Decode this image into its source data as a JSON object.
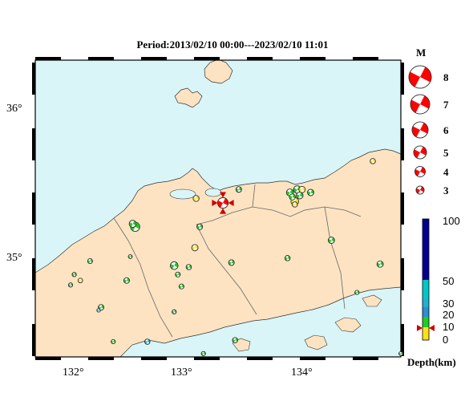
{
  "title": "Period:2013/02/10 00:00---2023/02/10 11:01",
  "axes": {
    "x_ticks": [
      "132°",
      "133°",
      "134°"
    ],
    "y_ticks": [
      "36°",
      "35°"
    ]
  },
  "magnitude_legend": {
    "title": "M",
    "items": [
      "8",
      "7",
      "6",
      "5",
      "4",
      "3"
    ]
  },
  "depth_legend": {
    "label": "Depth(km)",
    "ticks": [
      "100",
      "50",
      "30",
      "20",
      "10",
      "0"
    ]
  },
  "colors": {
    "sea": "#d9f5f7",
    "land": "#fde3c2",
    "accent_red": "#ff0000",
    "shallow_yellow": "#ffe01a",
    "green": "#22cc22",
    "cyan": "#1fb1d4",
    "deep_blue": "#000090"
  },
  "events": [
    {
      "lon": 133.27,
      "lat": 35.36,
      "mag": 5.0,
      "color": "#ff0000",
      "main": true
    },
    {
      "lon": 132.55,
      "lat": 35.2,
      "mag": 4.6,
      "color": "#22cc22"
    },
    {
      "lon": 132.53,
      "lat": 35.22,
      "mag": 4.0,
      "color": "#22cc22"
    },
    {
      "lon": 133.05,
      "lat": 35.39,
      "mag": 3.7,
      "color": "#ffe01a"
    },
    {
      "lon": 133.4,
      "lat": 35.45,
      "mag": 3.6,
      "color": "#22cc22"
    },
    {
      "lon": 133.08,
      "lat": 35.2,
      "mag": 3.6,
      "color": "#22cc22"
    },
    {
      "lon": 133.04,
      "lat": 35.06,
      "mag": 3.8,
      "color": "#ffe01a"
    },
    {
      "lon": 133.82,
      "lat": 35.43,
      "mag": 4.0,
      "color": "#22cc22"
    },
    {
      "lon": 133.86,
      "lat": 35.37,
      "mag": 4.2,
      "color": "#ffe01a"
    },
    {
      "lon": 133.88,
      "lat": 35.45,
      "mag": 4.1,
      "color": "#22cc22"
    },
    {
      "lon": 133.9,
      "lat": 35.41,
      "mag": 3.9,
      "color": "#22cc22"
    },
    {
      "lon": 133.84,
      "lat": 35.4,
      "mag": 3.7,
      "color": "#22cc22"
    },
    {
      "lon": 133.92,
      "lat": 35.45,
      "mag": 3.8,
      "color": "#ffe01a"
    },
    {
      "lon": 133.99,
      "lat": 35.43,
      "mag": 3.8,
      "color": "#22cc22"
    },
    {
      "lon": 133.86,
      "lat": 35.35,
      "mag": 3.5,
      "color": "#ffe01a"
    },
    {
      "lon": 134.5,
      "lat": 35.64,
      "mag": 3.5,
      "color": "#ffe01a"
    },
    {
      "lon": 134.16,
      "lat": 35.11,
      "mag": 3.8,
      "color": "#22cc22"
    },
    {
      "lon": 133.8,
      "lat": 34.99,
      "mag": 3.5,
      "color": "#22cc22"
    },
    {
      "lon": 132.18,
      "lat": 34.97,
      "mag": 3.4,
      "color": "#22cc22"
    },
    {
      "lon": 132.05,
      "lat": 34.88,
      "mag": 3.2,
      "color": "#22cc22"
    },
    {
      "lon": 132.1,
      "lat": 34.84,
      "mag": 3.3,
      "color": "#ffe01a"
    },
    {
      "lon": 132.02,
      "lat": 34.81,
      "mag": 3.2,
      "color": "#22cc22"
    },
    {
      "lon": 132.51,
      "lat": 35.0,
      "mag": 3.1,
      "color": "#22cc22"
    },
    {
      "lon": 132.48,
      "lat": 34.84,
      "mag": 3.6,
      "color": "#22cc22"
    },
    {
      "lon": 132.87,
      "lat": 34.94,
      "mag": 4.2,
      "color": "#22cc22"
    },
    {
      "lon": 132.9,
      "lat": 34.88,
      "mag": 3.4,
      "color": "#22cc22"
    },
    {
      "lon": 132.99,
      "lat": 34.93,
      "mag": 3.5,
      "color": "#22cc22"
    },
    {
      "lon": 132.93,
      "lat": 34.8,
      "mag": 3.4,
      "color": "#22cc22"
    },
    {
      "lon": 133.34,
      "lat": 34.96,
      "mag": 3.6,
      "color": "#22cc22"
    },
    {
      "lon": 132.27,
      "lat": 34.66,
      "mag": 3.6,
      "color": "#22cc22"
    },
    {
      "lon": 132.25,
      "lat": 34.64,
      "mag": 3.0,
      "color": "#1fb1d4"
    },
    {
      "lon": 132.87,
      "lat": 34.63,
      "mag": 3.2,
      "color": "#22cc22"
    },
    {
      "lon": 132.37,
      "lat": 34.43,
      "mag": 3.2,
      "color": "#22cc22"
    },
    {
      "lon": 132.65,
      "lat": 34.43,
      "mag": 3.5,
      "color": "#1fb1d4"
    },
    {
      "lon": 133.37,
      "lat": 34.44,
      "mag": 3.5,
      "color": "#22cc22"
    },
    {
      "lon": 133.11,
      "lat": 34.35,
      "mag": 3.2,
      "color": "#22cc22"
    },
    {
      "lon": 134.56,
      "lat": 34.95,
      "mag": 3.8,
      "color": "#22cc22"
    },
    {
      "lon": 134.37,
      "lat": 34.76,
      "mag": 3.2,
      "color": "#22cc22"
    },
    {
      "lon": 134.73,
      "lat": 34.35,
      "mag": 3.1,
      "color": "#22cc22"
    }
  ]
}
